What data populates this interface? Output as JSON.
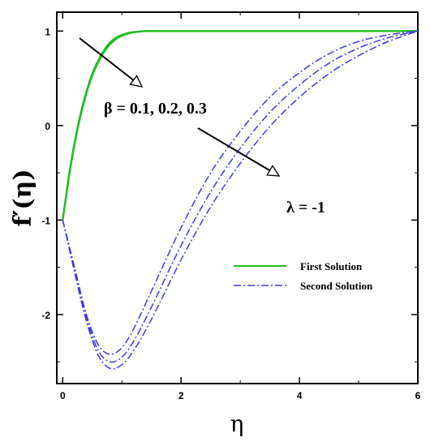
{
  "chart_data": {
    "type": "line",
    "xlabel": "η",
    "ylabel": "f′(η)",
    "xlim": [
      -0.1,
      6
    ],
    "ylim": [
      -2.73,
      1.2
    ],
    "xticks": [
      0,
      2,
      4,
      6
    ],
    "yticks": [
      1,
      0,
      -1,
      -2
    ],
    "grid": false,
    "legend": {
      "placement": "center-right",
      "entries": [
        {
          "label": "First Solution",
          "color": "#22bb22",
          "style": "solid"
        },
        {
          "label": "Second Solution",
          "color": "#3a3ae6",
          "style": "dash-dot"
        }
      ]
    },
    "annotations": {
      "beta": "β = 0.1, 0.2, 0.3",
      "lambda": "λ = -1"
    },
    "series": [
      {
        "name": "First Solution",
        "beta": 0.1,
        "color": "#22bb22",
        "style": "solid",
        "x": [
          0,
          0.1,
          0.2,
          0.3,
          0.4,
          0.5,
          0.6,
          0.7,
          0.8,
          0.9,
          1.0,
          1.1,
          1.2,
          1.3,
          1.4,
          1.6,
          2.0,
          3.0,
          4.0,
          5.0,
          6.0
        ],
        "y": [
          -1,
          -0.55,
          -0.18,
          0.12,
          0.36,
          0.55,
          0.69,
          0.8,
          0.88,
          0.93,
          0.96,
          0.98,
          0.99,
          0.995,
          1,
          1,
          1,
          1,
          1,
          1,
          1
        ]
      },
      {
        "name": "First Solution",
        "beta": 0.2,
        "color": "#22bb22",
        "style": "solid",
        "x": [
          0,
          0.1,
          0.2,
          0.3,
          0.4,
          0.5,
          0.6,
          0.7,
          0.8,
          0.9,
          1.0,
          1.1,
          1.2,
          1.3,
          1.4,
          1.6,
          2.0,
          3.0,
          4.0,
          5.0,
          6.0
        ],
        "y": [
          -1,
          -0.56,
          -0.19,
          0.11,
          0.35,
          0.54,
          0.68,
          0.79,
          0.87,
          0.92,
          0.955,
          0.975,
          0.988,
          0.995,
          1,
          1,
          1,
          1,
          1,
          1,
          1
        ]
      },
      {
        "name": "First Solution",
        "beta": 0.3,
        "color": "#22bb22",
        "style": "solid",
        "x": [
          0,
          0.1,
          0.2,
          0.3,
          0.4,
          0.5,
          0.6,
          0.7,
          0.8,
          0.9,
          1.0,
          1.1,
          1.2,
          1.3,
          1.4,
          1.6,
          2.0,
          3.0,
          4.0,
          5.0,
          6.0
        ],
        "y": [
          -1,
          -0.57,
          -0.2,
          0.1,
          0.34,
          0.53,
          0.67,
          0.78,
          0.86,
          0.915,
          0.95,
          0.972,
          0.986,
          0.994,
          1,
          1,
          1,
          1,
          1,
          1,
          1
        ]
      },
      {
        "name": "Second Solution",
        "beta": 0.1,
        "color": "#3a3ae6",
        "style": "dash-dot",
        "x": [
          0,
          0.2,
          0.4,
          0.6,
          0.8,
          1.0,
          1.2,
          1.5,
          2.0,
          2.5,
          3.0,
          3.5,
          4.0,
          4.5,
          5.0,
          5.5,
          6.0
        ],
        "y": [
          -1,
          -1.5,
          -2.0,
          -2.32,
          -2.42,
          -2.35,
          -2.15,
          -1.75,
          -1.08,
          -0.5,
          -0.06,
          0.3,
          0.56,
          0.76,
          0.89,
          0.96,
          1
        ]
      },
      {
        "name": "Second Solution",
        "beta": 0.2,
        "color": "#3a3ae6",
        "style": "dash-dot",
        "x": [
          0,
          0.2,
          0.4,
          0.6,
          0.8,
          1.0,
          1.2,
          1.5,
          2.0,
          2.5,
          3.0,
          3.5,
          4.0,
          4.5,
          5.0,
          5.5,
          6.0
        ],
        "y": [
          -1,
          -1.52,
          -2.03,
          -2.38,
          -2.5,
          -2.45,
          -2.28,
          -1.92,
          -1.27,
          -0.7,
          -0.24,
          0.14,
          0.43,
          0.66,
          0.82,
          0.93,
          1
        ]
      },
      {
        "name": "Second Solution",
        "beta": 0.3,
        "color": "#3a3ae6",
        "style": "dash-dot",
        "x": [
          0,
          0.2,
          0.4,
          0.6,
          0.8,
          1.0,
          1.2,
          1.5,
          2.0,
          2.5,
          3.0,
          3.5,
          4.0,
          4.5,
          5.0,
          5.5,
          6.0
        ],
        "y": [
          -1,
          -1.55,
          -2.07,
          -2.43,
          -2.57,
          -2.53,
          -2.38,
          -2.05,
          -1.42,
          -0.86,
          -0.4,
          -0.01,
          0.3,
          0.55,
          0.74,
          0.89,
          1
        ]
      }
    ]
  }
}
